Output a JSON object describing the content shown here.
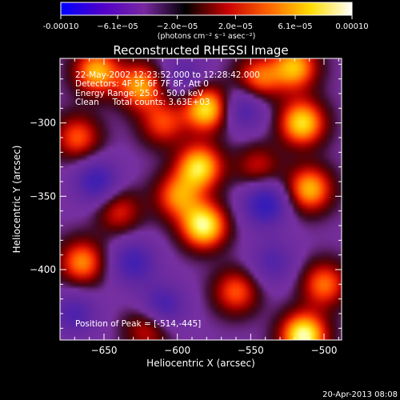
{
  "chart_data": {
    "type": "heatmap",
    "title": "Reconstructed RHESSI Image",
    "xlabel": "Heliocentric X (arcsec)",
    "ylabel": "Heliocentric Y (arcsec)",
    "xlim": [
      -680,
      -488
    ],
    "ylim": [
      -448,
      -256
    ],
    "x_ticks": [
      -650,
      -600,
      -550,
      -500
    ],
    "y_ticks": [
      -300,
      -350,
      -400
    ],
    "colorbar": {
      "min": -0.0001,
      "max": 0.0001,
      "tick_values": [
        -0.0001,
        -6.1e-05,
        -2e-05,
        2e-05,
        6.1e-05,
        0.0001
      ],
      "tick_labels": [
        "-0.00010",
        "−6.1e−05",
        "−2.0e−05",
        "2.0e−05",
        "6.1e−05",
        "0.00010"
      ],
      "units_label": "(photons cm⁻² s⁻¹ asec⁻²)",
      "colormap": [
        "#0000ff",
        "#5000c8",
        "#7828a0",
        "#000000",
        "#c80000",
        "#ff6400",
        "#ffdc00",
        "#ffffff"
      ]
    },
    "annotations": {
      "line1": "22-May-2002 12:23:52.000 to 12:28:42.000",
      "line2": "Detectors: 4F 5F 6F 7F 8F, Att 0",
      "line3": "Energy Range: 25.0 - 50.0 keV",
      "line4": "Clean     Total counts: 3.63E+03",
      "peak": "Position of Peak = [-514,-445]"
    },
    "peak_position": [
      -514,
      -445
    ],
    "sources": [
      {
        "x": -580,
        "y": -290,
        "amp": 0.9
      },
      {
        "x": -585,
        "y": -330,
        "amp": 0.85
      },
      {
        "x": -582,
        "y": -370,
        "amp": 0.95
      },
      {
        "x": -600,
        "y": -350,
        "amp": 0.6
      },
      {
        "x": -655,
        "y": -265,
        "amp": 0.75
      },
      {
        "x": -625,
        "y": -275,
        "amp": 0.7
      },
      {
        "x": -610,
        "y": -300,
        "amp": 0.5
      },
      {
        "x": -545,
        "y": -270,
        "amp": 0.6
      },
      {
        "x": -520,
        "y": -262,
        "amp": 0.75
      },
      {
        "x": -515,
        "y": -300,
        "amp": 0.85
      },
      {
        "x": -510,
        "y": -345,
        "amp": 0.75
      },
      {
        "x": -668,
        "y": -310,
        "amp": 0.55
      },
      {
        "x": -640,
        "y": -360,
        "amp": 0.45
      },
      {
        "x": -665,
        "y": -395,
        "amp": 0.65
      },
      {
        "x": -560,
        "y": -415,
        "amp": 0.55
      },
      {
        "x": -514,
        "y": -445,
        "amp": 1.0
      },
      {
        "x": -500,
        "y": -410,
        "amp": 0.6
      },
      {
        "x": -620,
        "y": -440,
        "amp": 0.45
      },
      {
        "x": -545,
        "y": -330,
        "amp": 0.4
      },
      {
        "x": -630,
        "y": -395,
        "amp": -0.55
      },
      {
        "x": -655,
        "y": -340,
        "amp": -0.6
      },
      {
        "x": -540,
        "y": -355,
        "amp": -0.7
      },
      {
        "x": -555,
        "y": -290,
        "amp": -0.5
      },
      {
        "x": -610,
        "y": -425,
        "amp": -0.55
      },
      {
        "x": -535,
        "y": -395,
        "amp": -0.4
      },
      {
        "x": -595,
        "y": -268,
        "amp": -0.35
      },
      {
        "x": -670,
        "y": -430,
        "amp": -0.45
      }
    ]
  },
  "footer": {
    "timestamp": "20-Apr-2013 08:08"
  }
}
